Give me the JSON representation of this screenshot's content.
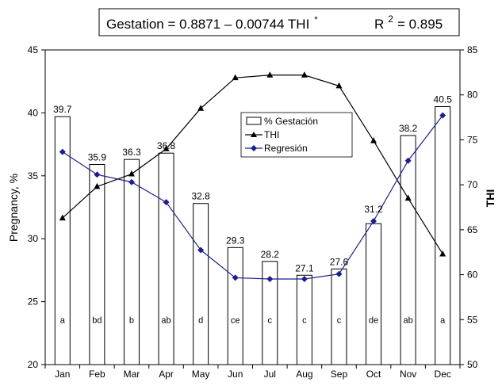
{
  "chart_data": {
    "type": "bar",
    "equation_box": {
      "equation": "Gestation = 0.8871 – 0.00744 THI",
      "sup": "*",
      "r_label": "R",
      "r_sup": "2",
      "r_value": "= 0.895"
    },
    "categories": [
      "Jan",
      "Feb",
      "Mar",
      "Apr",
      "May",
      "Jun",
      "Jul",
      "Aug",
      "Sep",
      "Oct",
      "Nov",
      "Dec"
    ],
    "ylabel": "Pregnancy, %",
    "y2label": "THI",
    "ylim": [
      20,
      45
    ],
    "y2lim": [
      50,
      85
    ],
    "yticks": [
      20,
      25,
      30,
      35,
      40,
      45
    ],
    "y2ticks": [
      50,
      55,
      60,
      65,
      70,
      75,
      80,
      85
    ],
    "series": [
      {
        "name": "% Gestación",
        "type": "bar",
        "axis": "left",
        "values": [
          39.7,
          35.9,
          36.3,
          36.8,
          32.8,
          29.3,
          28.2,
          27.1,
          27.6,
          31.2,
          38.2,
          40.5
        ],
        "labels": [
          "39.7",
          "35.9",
          "36.3",
          "36.8",
          "32.8",
          "29.3",
          "28.2",
          "27.1",
          "27.6",
          "",
          "38.2",
          "40.5"
        ],
        "letters": [
          "a",
          "bd",
          "b",
          "ab",
          "d",
          "ce",
          "c",
          "c",
          "c",
          "de",
          "ab",
          "a"
        ]
      },
      {
        "name": "THI",
        "type": "line",
        "axis": "right",
        "marker": "triangle",
        "color": "#000000",
        "values": [
          66.3,
          69.8,
          71.2,
          74.0,
          78.5,
          81.9,
          82.2,
          82.2,
          81.0,
          74.9,
          68.5,
          62.3
        ]
      },
      {
        "name": "Regresión",
        "type": "line",
        "axis": "left",
        "marker": "diamond",
        "color": "#1f1f8c",
        "values": [
          36.9,
          35.1,
          34.5,
          32.9,
          29.1,
          26.9,
          26.8,
          26.8,
          27.2,
          31.4,
          36.2,
          39.8
        ],
        "labels": [
          "",
          "",
          "",
          "",
          "",
          "",
          "",
          "",
          "",
          "31.2",
          "",
          ""
        ]
      }
    ],
    "legend_position": "center-top",
    "grid": false
  }
}
